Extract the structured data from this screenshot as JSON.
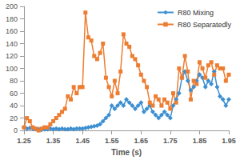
{
  "chart_data": {
    "type": "line",
    "x_label": "Time (s)",
    "x": [
      1.25,
      1.26,
      1.27,
      1.28,
      1.29,
      1.3,
      1.31,
      1.32,
      1.33,
      1.34,
      1.35,
      1.36,
      1.37,
      1.38,
      1.39,
      1.4,
      1.41,
      1.42,
      1.43,
      1.44,
      1.45,
      1.46,
      1.47,
      1.48,
      1.49,
      1.5,
      1.51,
      1.52,
      1.53,
      1.54,
      1.55,
      1.56,
      1.57,
      1.58,
      1.59,
      1.6,
      1.61,
      1.62,
      1.63,
      1.64,
      1.65,
      1.66,
      1.67,
      1.68,
      1.69,
      1.7,
      1.71,
      1.72,
      1.73,
      1.74,
      1.75,
      1.76,
      1.77,
      1.78,
      1.79,
      1.8,
      1.81,
      1.82,
      1.83,
      1.84,
      1.85,
      1.86,
      1.87,
      1.88,
      1.89,
      1.9,
      1.91,
      1.92,
      1.93,
      1.94,
      1.95
    ],
    "series": [
      {
        "name": "R80 Mixing",
        "color": "#3d8fd1",
        "marker": "diamond",
        "values": [
          5,
          3,
          4,
          3,
          2,
          2,
          1,
          2,
          2,
          3,
          2,
          3,
          2,
          3,
          2,
          2,
          3,
          2,
          3,
          3,
          3,
          4,
          5,
          6,
          7,
          8,
          10,
          15,
          20,
          25,
          40,
          35,
          40,
          45,
          40,
          50,
          45,
          40,
          35,
          40,
          45,
          30,
          35,
          40,
          30,
          25,
          20,
          25,
          30,
          25,
          20,
          40,
          50,
          60,
          85,
          95,
          80,
          65,
          70,
          80,
          90,
          85,
          70,
          80,
          75,
          95,
          70,
          55,
          50,
          40,
          50
        ]
      },
      {
        "name": "R80 Separatedly",
        "color": "#ed7d31",
        "marker": "square",
        "values": [
          5,
          20,
          15,
          5,
          3,
          0,
          3,
          5,
          5,
          10,
          15,
          20,
          25,
          30,
          35,
          55,
          50,
          70,
          60,
          70,
          70,
          190,
          150,
          145,
          120,
          115,
          125,
          140,
          85,
          70,
          55,
          80,
          60,
          95,
          155,
          140,
          135,
          120,
          115,
          105,
          90,
          80,
          70,
          45,
          40,
          55,
          50,
          40,
          50,
          45,
          35,
          60,
          45,
          100,
          85,
          120,
          95,
          50,
          80,
          75,
          110,
          100,
          85,
          105,
          110,
          90,
          105,
          100,
          100,
          80,
          90
        ]
      }
    ],
    "xlim": [
      1.25,
      1.95
    ],
    "xticks": [
      {
        "value": 1.25,
        "label": "1.25"
      },
      {
        "value": 1.35,
        "label": "1.35"
      },
      {
        "value": 1.45,
        "label": "1.45"
      },
      {
        "value": 1.55,
        "label": "1.55"
      },
      {
        "value": 1.65,
        "label": "1.65"
      },
      {
        "value": 1.75,
        "label": "1.75"
      },
      {
        "value": 1.85,
        "label": "1.85"
      },
      {
        "value": 1.95,
        "label": "1.95"
      }
    ],
    "ylim": [
      0,
      200
    ],
    "yticks": [
      0,
      20,
      40,
      60,
      80,
      100,
      120,
      140,
      160,
      180,
      200
    ],
    "grid": false,
    "legend": "top-right"
  }
}
